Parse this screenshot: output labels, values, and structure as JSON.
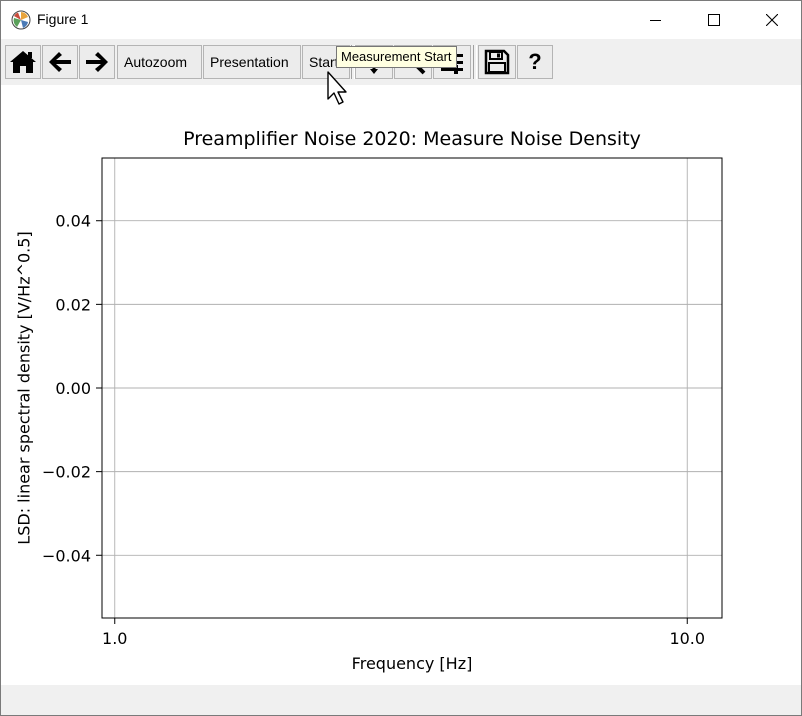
{
  "window": {
    "title": "Figure 1",
    "icons": {
      "app": "matplotlib-logo-icon",
      "minimize": "minimize-icon",
      "maximize": "maximize-icon",
      "close": "close-icon"
    }
  },
  "toolbar": {
    "home_icon": "home-icon",
    "back_icon": "arrow-left-icon",
    "forward_icon": "arrow-right-icon",
    "autozoom_label": "Autozoom",
    "presentation_label": "Presentation",
    "start_label": "Start",
    "pan_icon": "pan-icon",
    "zoom_icon": "zoom-icon",
    "subplots_icon": "subplots-icon",
    "save_icon": "save-icon",
    "help_label": "?",
    "tooltip": "Measurement Start"
  },
  "colors": {
    "window_bg": "#ffffff",
    "toolbar_bg": "#f0f0f0",
    "tooltip_bg": "#ffffe1",
    "grid": "#b0b0b0",
    "axes": "#000000"
  },
  "chart_data": {
    "type": "line",
    "title": "Preamplifier Noise 2020: Measure Noise Density",
    "xlabel": "Frequency [Hz]",
    "ylabel": "LSD: linear spectral density [V/Hz^0.5]",
    "xscale": "log",
    "xlim": [
      0.95,
      11.5
    ],
    "ylim": [
      -0.055,
      0.055
    ],
    "xticks": [
      1.0,
      10.0
    ],
    "xtick_labels": [
      "1.0",
      "10.0"
    ],
    "yticks": [
      -0.04,
      -0.02,
      0.0,
      0.02,
      0.04
    ],
    "ytick_labels": [
      "−0.04",
      "−0.02",
      "0.00",
      "0.02",
      "0.04"
    ],
    "grid": true,
    "series": []
  }
}
